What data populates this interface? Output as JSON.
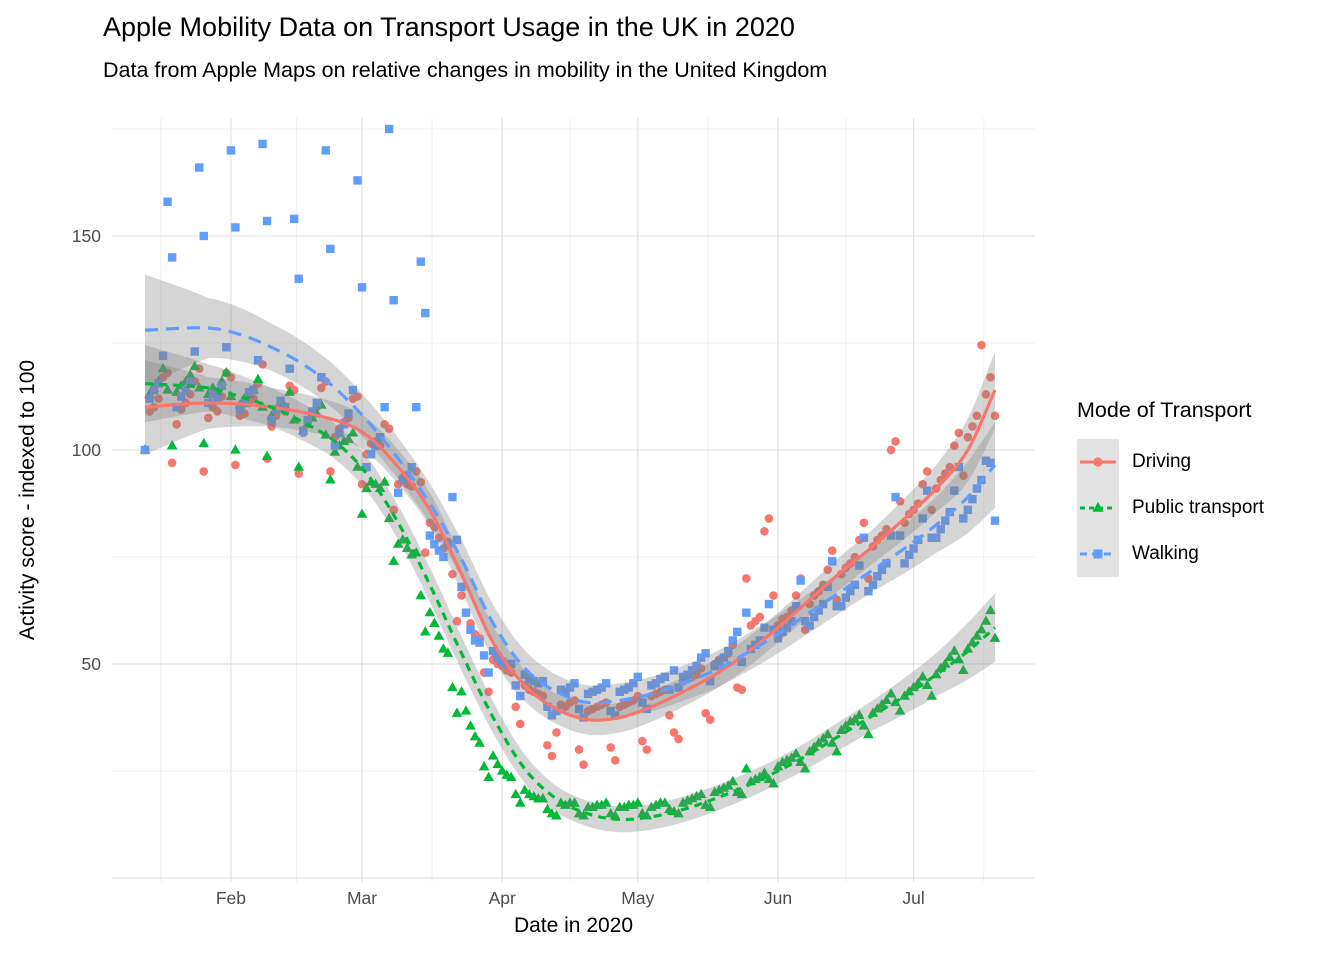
{
  "title": "Apple Mobility Data on Transport Usage in the UK in 2020",
  "subtitle": "Data from Apple Maps on relative changes in mobility in the United Kingdom",
  "axes": {
    "x_title": "Date in 2020",
    "y_title": "Activity score - indexed to 100",
    "x_ticks": [
      "Feb",
      "Mar",
      "Apr",
      "May",
      "Jun",
      "Jul"
    ],
    "y_ticks": [
      50,
      100,
      150
    ]
  },
  "legend": {
    "title": "Mode of Transport",
    "items": [
      {
        "label": "Driving",
        "color": "#F8766D",
        "marker": "circle",
        "dash": ""
      },
      {
        "label": "Public transport",
        "color": "#00BA38",
        "marker": "triangle",
        "dash": "5,4"
      },
      {
        "label": "Walking",
        "color": "#619CFF",
        "marker": "square",
        "dash": "7,5"
      }
    ]
  },
  "colors": {
    "grid_major": "#e3e3e3",
    "grid_minor": "#f0f0f0",
    "band": "#808080",
    "band_opacity": 0.33,
    "tick_text": "#4d4d4d"
  },
  "chart_data": {
    "type": "scatter",
    "title": "Apple Mobility Data on Transport Usage in the UK in 2020",
    "xlabel": "Date in 2020",
    "ylabel": "Activity score - indexed to 100",
    "x_unit": "days since 2020-01-13 (daily values, Jan 13 = Monday)",
    "x_range_days": [
      0,
      188
    ],
    "ylim": [
      0,
      177
    ],
    "y_major_gridlines": [
      0,
      50,
      100,
      150
    ],
    "y_minor_gridlines": [
      25,
      75,
      125,
      175
    ],
    "x_month_tick_days": [
      19,
      48,
      79,
      109,
      140,
      170
    ],
    "x_minor_gridline_days": [
      3.5,
      33.5,
      63.5,
      94,
      124.5,
      155,
      185.5
    ],
    "legend_position": "right",
    "series": [
      {
        "name": "Driving",
        "color": "#F8766D",
        "marker": "circle",
        "line_style": "solid",
        "values": [
          100,
          109,
          110,
          112,
          117,
          118,
          97,
          106,
          109.5,
          111,
          113,
          116,
          119,
          95,
          107.5,
          110,
          109,
          112.5,
          118,
          117,
          96.5,
          108,
          108.5,
          111,
          112,
          115.5,
          120,
          98,
          105.5,
          108,
          110.5,
          109,
          115,
          114,
          94.5,
          104,
          107,
          108.5,
          110,
          114.5,
          116,
          95,
          103,
          105,
          106.5,
          107.5,
          112,
          112.5,
          92,
          99,
          101.5,
          102,
          101,
          106,
          105,
          86,
          92,
          93.5,
          92,
          91.5,
          95,
          92.5,
          76,
          83,
          82,
          79.5,
          77,
          78.5,
          71,
          60,
          66,
          62,
          59.5,
          57,
          56,
          48,
          43.5,
          51,
          50,
          49.5,
          48.5,
          48,
          40,
          36,
          45,
          44,
          43.5,
          43,
          42.5,
          31,
          28.5,
          34,
          40.5,
          40,
          41,
          41.5,
          30,
          26.5,
          39,
          39.5,
          40,
          40.5,
          41,
          30.5,
          27.5,
          40,
          40.5,
          41,
          41.5,
          42.5,
          32,
          30,
          42.5,
          43,
          43.5,
          44,
          38,
          34,
          32.5,
          46,
          46.5,
          47,
          47.5,
          49,
          38.5,
          37,
          50,
          51,
          51.5,
          52.5,
          54.5,
          44.5,
          44,
          70,
          59,
          60,
          61,
          81,
          84,
          66,
          59,
          60.5,
          61,
          62.5,
          66,
          70,
          58,
          64,
          66,
          67,
          68.5,
          72,
          76.5,
          65,
          71,
          72.5,
          73.5,
          75,
          79,
          83,
          70,
          77.5,
          79,
          80,
          81.5,
          100,
          102,
          88,
          83,
          85,
          86,
          87.5,
          92,
          95,
          86,
          91,
          93,
          94.5,
          96,
          101,
          104,
          94,
          103,
          105.5,
          108,
          124.5,
          113,
          117,
          108
        ],
        "trend": [
          [
            0,
            110
          ],
          [
            14,
            111
          ],
          [
            28,
            110
          ],
          [
            42,
            107
          ],
          [
            49,
            103.5
          ],
          [
            56,
            96
          ],
          [
            63,
            86
          ],
          [
            70,
            71
          ],
          [
            77,
            55
          ],
          [
            84,
            45
          ],
          [
            91,
            39.5
          ],
          [
            98,
            37
          ],
          [
            105,
            37.5
          ],
          [
            112,
            40
          ],
          [
            119,
            43.5
          ],
          [
            126,
            47.5
          ],
          [
            133,
            52.5
          ],
          [
            140,
            58.5
          ],
          [
            147,
            65
          ],
          [
            154,
            71.5
          ],
          [
            161,
            77.5
          ],
          [
            168,
            84
          ],
          [
            175,
            91
          ],
          [
            182,
            100
          ],
          [
            188,
            114
          ]
        ],
        "band_halfwidth": [
          [
            0,
            11
          ],
          [
            14,
            6
          ],
          [
            28,
            4.5
          ],
          [
            48,
            4
          ],
          [
            70,
            4
          ],
          [
            91,
            3.5
          ],
          [
            112,
            3.5
          ],
          [
            140,
            3.5
          ],
          [
            161,
            4
          ],
          [
            175,
            5.5
          ],
          [
            188,
            9
          ]
        ]
      },
      {
        "name": "Public transport",
        "color": "#00BA38",
        "marker": "triangle",
        "line_style": "dashed",
        "values": [
          100,
          113,
          114.5,
          116,
          119,
          114,
          101,
          113.5,
          115,
          116,
          117.5,
          119.5,
          114.5,
          101.5,
          113,
          114.5,
          113.5,
          116,
          118,
          112.5,
          100,
          110.5,
          112,
          113,
          114,
          116.5,
          110,
          98.5,
          108,
          109.5,
          111,
          110,
          113.5,
          107,
          96,
          104.5,
          106,
          107.5,
          108.5,
          110.5,
          103.5,
          93,
          99.5,
          101,
          102,
          102.5,
          104,
          96,
          85,
          91,
          92.5,
          92,
          91,
          92.5,
          84,
          74,
          78,
          79,
          77,
          75.5,
          76,
          66,
          57.5,
          62,
          59.5,
          56.5,
          53.5,
          52.5,
          44.5,
          38.5,
          43.5,
          39,
          35.5,
          33,
          31.5,
          26,
          23.5,
          28.5,
          26.5,
          25,
          24,
          23.5,
          19.5,
          17.5,
          20.5,
          19.5,
          19,
          18.5,
          18.5,
          16,
          15,
          14.5,
          17.5,
          17,
          17.5,
          17.5,
          15,
          14.5,
          16.5,
          16.5,
          17,
          17,
          17.5,
          15,
          14.5,
          16.5,
          16.5,
          17,
          17,
          17.5,
          15,
          14.5,
          16.5,
          17,
          17.5,
          17.5,
          16,
          15.5,
          15,
          17.5,
          18,
          18.5,
          19,
          19.5,
          17,
          16.5,
          20,
          20.5,
          21,
          21.5,
          22.5,
          20,
          19.5,
          25.5,
          22.5,
          23,
          23.5,
          24.5,
          23,
          22,
          26,
          27,
          27.5,
          28,
          29,
          27,
          25.5,
          29.5,
          30.5,
          31.5,
          32.5,
          33.5,
          31.5,
          29.5,
          34.5,
          35.5,
          36.5,
          37,
          38,
          35.5,
          33.5,
          38.5,
          39.5,
          40.5,
          41.5,
          43,
          41,
          39,
          42.5,
          43.5,
          44.5,
          45.5,
          47,
          45,
          42.5,
          47.5,
          49,
          50,
          51.5,
          53,
          51,
          48.5,
          53.5,
          55,
          56.5,
          58,
          60,
          62.5,
          56
        ],
        "trend": [
          [
            0,
            115.5
          ],
          [
            14,
            114.5
          ],
          [
            21,
            112.5
          ],
          [
            28,
            110
          ],
          [
            35,
            106.5
          ],
          [
            42,
            102
          ],
          [
            49,
            94.5
          ],
          [
            56,
            83
          ],
          [
            63,
            68.5
          ],
          [
            70,
            52.5
          ],
          [
            77,
            37.5
          ],
          [
            84,
            25.5
          ],
          [
            91,
            18.5
          ],
          [
            98,
            15
          ],
          [
            105,
            13.7
          ],
          [
            112,
            14.3
          ],
          [
            119,
            16
          ],
          [
            126,
            18.5
          ],
          [
            133,
            21.5
          ],
          [
            140,
            25
          ],
          [
            147,
            29
          ],
          [
            154,
            33.5
          ],
          [
            161,
            38
          ],
          [
            168,
            42.5
          ],
          [
            175,
            47.5
          ],
          [
            182,
            53
          ],
          [
            188,
            58.5
          ]
        ],
        "band_halfwidth": [
          [
            0,
            9
          ],
          [
            14,
            5.5
          ],
          [
            28,
            4.5
          ],
          [
            48,
            4
          ],
          [
            70,
            4
          ],
          [
            91,
            3
          ],
          [
            112,
            3
          ],
          [
            140,
            3
          ],
          [
            161,
            3.5
          ],
          [
            175,
            5
          ],
          [
            188,
            8
          ]
        ]
      },
      {
        "name": "Walking",
        "color": "#619CFF",
        "marker": "square",
        "line_style": "longdash",
        "values": [
          100,
          112,
          114,
          115.5,
          122,
          158,
          145,
          110,
          112.5,
          114,
          116,
          123,
          166,
          150,
          111,
          113,
          112,
          115,
          124,
          170,
          152,
          109.5,
          111,
          113.5,
          114,
          121,
          171.5,
          153.5,
          107,
          109.5,
          111.5,
          110,
          119,
          154,
          140,
          104.5,
          107,
          109,
          111,
          117,
          170,
          147,
          101,
          104,
          106,
          108.5,
          114,
          163,
          138,
          96,
          99,
          101,
          103,
          110,
          175,
          135,
          90,
          93,
          94,
          96,
          110,
          144,
          132,
          80,
          78,
          76.5,
          75,
          78,
          89,
          79,
          68,
          62,
          58,
          55.5,
          55,
          52,
          48,
          53,
          51.5,
          50.5,
          50,
          50,
          45,
          42.5,
          47.5,
          46.5,
          46,
          45.5,
          46,
          40,
          38,
          39,
          44,
          43.5,
          44.5,
          45.5,
          39.5,
          37.5,
          43,
          43.5,
          44,
          44.5,
          45.5,
          39,
          38,
          43.5,
          44,
          44.5,
          45.5,
          47,
          41,
          39.5,
          45,
          45.5,
          46.5,
          47,
          44,
          48.5,
          44.5,
          47,
          47.5,
          48.5,
          49.5,
          51.5,
          52.5,
          46,
          49.5,
          50.5,
          51.5,
          53,
          55.5,
          57.5,
          50.5,
          62,
          53.5,
          54.5,
          55.5,
          58.5,
          64,
          58,
          56,
          57.5,
          58.5,
          60,
          63.5,
          69.5,
          60,
          59,
          61,
          62.5,
          64,
          68,
          74,
          63.5,
          63.5,
          65.5,
          67,
          68.5,
          73,
          79.5,
          67,
          68.5,
          70.5,
          72,
          73.5,
          80,
          89,
          80,
          73.5,
          75.5,
          77,
          79,
          84,
          90.5,
          79.5,
          79.5,
          81.5,
          83.5,
          85.5,
          90.5,
          96,
          84,
          86,
          88.5,
          91,
          93,
          97.5,
          97,
          83.5
        ],
        "trend": [
          [
            0,
            128
          ],
          [
            14,
            128.5
          ],
          [
            21,
            127
          ],
          [
            28,
            124
          ],
          [
            35,
            120
          ],
          [
            42,
            114.5
          ],
          [
            49,
            107
          ],
          [
            56,
            98
          ],
          [
            63,
            87.5
          ],
          [
            70,
            74.5
          ],
          [
            77,
            59.5
          ],
          [
            84,
            49
          ],
          [
            91,
            43.5
          ],
          [
            98,
            41
          ],
          [
            105,
            41.5
          ],
          [
            112,
            43
          ],
          [
            119,
            45.5
          ],
          [
            126,
            48.5
          ],
          [
            133,
            52.5
          ],
          [
            140,
            57
          ],
          [
            147,
            62
          ],
          [
            154,
            67
          ],
          [
            161,
            72
          ],
          [
            168,
            77
          ],
          [
            175,
            82.5
          ],
          [
            182,
            89
          ],
          [
            188,
            96.5
          ]
        ],
        "band_halfwidth": [
          [
            0,
            13
          ],
          [
            14,
            7
          ],
          [
            28,
            5.5
          ],
          [
            48,
            5
          ],
          [
            70,
            4.5
          ],
          [
            91,
            4
          ],
          [
            112,
            4
          ],
          [
            140,
            4.5
          ],
          [
            161,
            5
          ],
          [
            175,
            6.5
          ],
          [
            188,
            10
          ]
        ]
      }
    ]
  }
}
